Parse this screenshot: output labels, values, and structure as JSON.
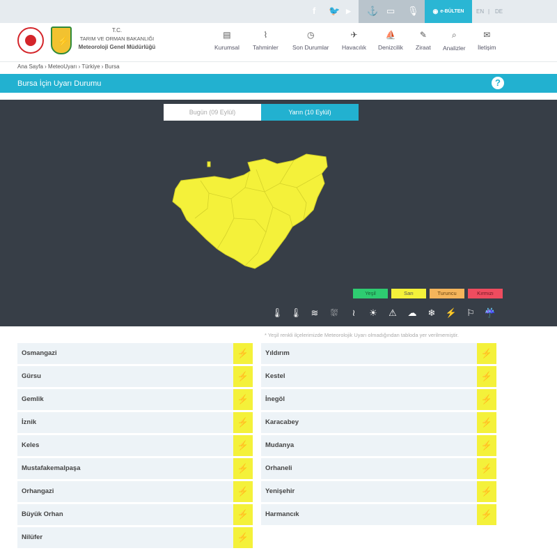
{
  "topbar": {
    "facebook_icon": "f",
    "twitter_icon": "🐦",
    "youtube_icon": "▶",
    "ebulten_label": "e-BÜLTEN",
    "lang_en": "EN",
    "lang_sep": "|",
    "lang_de": "DE"
  },
  "header": {
    "org_line1": "T.C.",
    "org_line2": "TARIM VE ORMAN BAKANLIĞI",
    "org_line3": "Meteoroloji Genel Müdürlüğü",
    "nav": [
      {
        "label": "Kurumsal",
        "icon": "▤"
      },
      {
        "label": "Tahminler",
        "icon": "⌇"
      },
      {
        "label": "Son Durumlar",
        "icon": "◷"
      },
      {
        "label": "Havacılık",
        "icon": "✈"
      },
      {
        "label": "Denizcilik",
        "icon": "⛵"
      },
      {
        "label": "Ziraat",
        "icon": "✎"
      },
      {
        "label": "Analizler",
        "icon": "⌕"
      },
      {
        "label": "İletişim",
        "icon": "✉"
      }
    ]
  },
  "breadcrumb": "Ana Sayfa › MeteoUyarı › Türkiye › Bursa",
  "page_title": "Bursa İçin Uyarı Durumu",
  "help_icon": "?",
  "tabs": {
    "today": "Bugün (09 Eylül)",
    "tomorrow": "Yarın (10 Eylül)"
  },
  "legend": [
    {
      "label": "Yeşil",
      "color": "#2ecc71",
      "text_color": "#1a5e34"
    },
    {
      "label": "Sarı",
      "color": "#f4f13a",
      "text_color": "#555"
    },
    {
      "label": "Turuncu",
      "color": "#f5b55b",
      "text_color": "#6b4410"
    },
    {
      "label": "Kırmızı",
      "color": "#ef4c5f",
      "text_color": "#6a1620"
    }
  ],
  "warning_icons": [
    "🌡",
    "🌡",
    "≋",
    "⛆",
    "≀",
    "☀",
    "⚠",
    "☁",
    "❄",
    "⚡",
    "⚐",
    "☔"
  ],
  "note": "* Yeşil renkli ilçelerimizde Meteorolojik Uyarı olmadığından tabloda yer verilmemiştir.",
  "colors": {
    "alert_level": "#f4f13a",
    "accent": "#22b1d0",
    "map_bg": "#373e47"
  },
  "badge_icon": "⚡",
  "districts_left": [
    "Osmangazi",
    "Gürsu",
    "Gemlik",
    "İznik",
    "Keles",
    "Mustafakemalpaşa",
    "Orhangazi",
    "Büyük Orhan",
    "Nilüfer"
  ],
  "districts_right": [
    "Yıldırım",
    "Kestel",
    "İnegöl",
    "Karacabey",
    "Mudanya",
    "Orhaneli",
    "Yenişehir",
    "Harmancık"
  ]
}
